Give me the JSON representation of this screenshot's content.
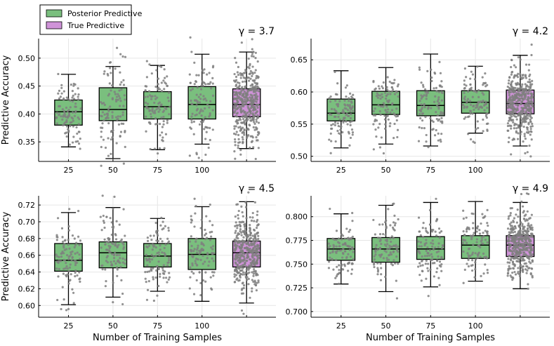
{
  "legend": {
    "items": [
      {
        "label": "Posterior Predictive",
        "color": "#7abf7e"
      },
      {
        "label": "True Predictive",
        "color": "#cf93d8"
      }
    ]
  },
  "colors": {
    "posterior": "#7abf7e",
    "true": "#cf93d8",
    "points": "#7f7f7f",
    "grid": "#e6e6e6"
  },
  "chart_data": [
    {
      "type": "box",
      "title": "γ = 3.7",
      "ylabel": "Predictive Accuracy",
      "xlabel": "",
      "categories": [
        "25",
        "50",
        "75",
        "100",
        ""
      ],
      "ylim": [
        0.315,
        0.535
      ],
      "yticks": [
        0.35,
        0.4,
        0.45,
        0.5
      ],
      "ytick_labels": [
        "0.35",
        "0.40",
        "0.45",
        "0.50"
      ],
      "grid": true,
      "boxes": [
        {
          "series": "Posterior Predictive",
          "whisker_low": 0.341,
          "q1": 0.38,
          "median": 0.404,
          "q3": 0.425,
          "whisker_high": 0.471,
          "n": 100
        },
        {
          "series": "Posterior Predictive",
          "whisker_low": 0.32,
          "q1": 0.388,
          "median": 0.408,
          "q3": 0.447,
          "whisker_high": 0.485,
          "n": 100
        },
        {
          "series": "Posterior Predictive",
          "whisker_low": 0.336,
          "q1": 0.391,
          "median": 0.413,
          "q3": 0.44,
          "whisker_high": 0.487,
          "n": 100
        },
        {
          "series": "Posterior Predictive",
          "whisker_low": 0.346,
          "q1": 0.391,
          "median": 0.417,
          "q3": 0.449,
          "whisker_high": 0.507,
          "n": 100
        },
        {
          "series": "True Predictive",
          "whisker_low": 0.338,
          "q1": 0.395,
          "median": 0.417,
          "q3": 0.445,
          "whisker_high": 0.511,
          "n": 400
        }
      ]
    },
    {
      "type": "box",
      "title": "γ = 4.2",
      "ylabel": "",
      "xlabel": "",
      "categories": [
        "25",
        "50",
        "75",
        "100",
        ""
      ],
      "ylim": [
        0.492,
        0.683
      ],
      "yticks": [
        0.5,
        0.55,
        0.6,
        0.65
      ],
      "ytick_labels": [
        "0.50",
        "0.55",
        "0.60",
        "0.65"
      ],
      "grid": true,
      "boxes": [
        {
          "series": "Posterior Predictive",
          "whisker_low": 0.513,
          "q1": 0.555,
          "median": 0.567,
          "q3": 0.589,
          "whisker_high": 0.633,
          "n": 100
        },
        {
          "series": "Posterior Predictive",
          "whisker_low": 0.519,
          "q1": 0.565,
          "median": 0.58,
          "q3": 0.601,
          "whisker_high": 0.638,
          "n": 100
        },
        {
          "series": "Posterior Predictive",
          "whisker_low": 0.516,
          "q1": 0.563,
          "median": 0.579,
          "q3": 0.602,
          "whisker_high": 0.659,
          "n": 100
        },
        {
          "series": "Posterior Predictive",
          "whisker_low": 0.536,
          "q1": 0.567,
          "median": 0.584,
          "q3": 0.602,
          "whisker_high": 0.64,
          "n": 100
        },
        {
          "series": "True Predictive",
          "whisker_low": 0.516,
          "q1": 0.566,
          "median": 0.582,
          "q3": 0.603,
          "whisker_high": 0.657,
          "n": 400
        }
      ]
    },
    {
      "type": "box",
      "title": "γ = 4.5",
      "ylabel": "Predictive Accuracy",
      "xlabel": "Number of Training Samples",
      "categories": [
        "25",
        "50",
        "75",
        "100",
        ""
      ],
      "ylim": [
        0.586,
        0.731
      ],
      "yticks": [
        0.6,
        0.62,
        0.64,
        0.66,
        0.68,
        0.7,
        0.72
      ],
      "ytick_labels": [
        "0.60",
        "0.62",
        "0.64",
        "0.66",
        "0.68",
        "0.70",
        "0.72"
      ],
      "grid": true,
      "boxes": [
        {
          "series": "Posterior Predictive",
          "whisker_low": 0.601,
          "q1": 0.641,
          "median": 0.654,
          "q3": 0.674,
          "whisker_high": 0.711,
          "n": 100
        },
        {
          "series": "Posterior Predictive",
          "whisker_low": 0.61,
          "q1": 0.645,
          "median": 0.663,
          "q3": 0.676,
          "whisker_high": 0.717,
          "n": 100
        },
        {
          "series": "Posterior Predictive",
          "whisker_low": 0.617,
          "q1": 0.646,
          "median": 0.659,
          "q3": 0.674,
          "whisker_high": 0.704,
          "n": 100
        },
        {
          "series": "Posterior Predictive",
          "whisker_low": 0.605,
          "q1": 0.643,
          "median": 0.661,
          "q3": 0.68,
          "whisker_high": 0.718,
          "n": 100
        },
        {
          "series": "True Predictive",
          "whisker_low": 0.603,
          "q1": 0.646,
          "median": 0.663,
          "q3": 0.677,
          "whisker_high": 0.724,
          "n": 400
        }
      ]
    },
    {
      "type": "box",
      "title": "γ = 4.9",
      "ylabel": "",
      "xlabel": "Number of Training Samples",
      "categories": [
        "25",
        "50",
        "75",
        "100",
        ""
      ],
      "ylim": [
        0.694,
        0.822
      ],
      "yticks": [
        0.7,
        0.725,
        0.75,
        0.775,
        0.8
      ],
      "ytick_labels": [
        "0.700",
        "0.725",
        "0.750",
        "0.775",
        "0.800"
      ],
      "grid": true,
      "boxes": [
        {
          "series": "Posterior Predictive",
          "whisker_low": 0.729,
          "q1": 0.754,
          "median": 0.766,
          "q3": 0.777,
          "whisker_high": 0.803,
          "n": 100
        },
        {
          "series": "Posterior Predictive",
          "whisker_low": 0.721,
          "q1": 0.752,
          "median": 0.766,
          "q3": 0.778,
          "whisker_high": 0.812,
          "n": 100
        },
        {
          "series": "Posterior Predictive",
          "whisker_low": 0.726,
          "q1": 0.755,
          "median": 0.766,
          "q3": 0.779,
          "whisker_high": 0.815,
          "n": 100
        },
        {
          "series": "Posterior Predictive",
          "whisker_low": 0.732,
          "q1": 0.756,
          "median": 0.77,
          "q3": 0.78,
          "whisker_high": 0.816,
          "n": 100
        },
        {
          "series": "True Predictive",
          "whisker_low": 0.724,
          "q1": 0.758,
          "median": 0.77,
          "q3": 0.78,
          "whisker_high": 0.815,
          "n": 400
        }
      ]
    }
  ]
}
